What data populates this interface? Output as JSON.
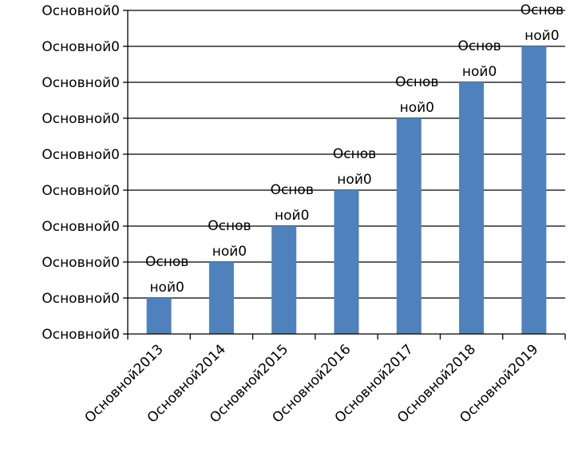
{
  "chart_data": {
    "type": "bar",
    "categories": [
      "Основной2013",
      "Основной2014",
      "Основной2015",
      "Основной2016",
      "Основной2017",
      "Основной2018",
      "Основной2019"
    ],
    "values": [
      1,
      2,
      3,
      4,
      6,
      7,
      8
    ],
    "ylim": [
      0,
      9
    ],
    "y_tick_labels": [
      "Основной0",
      "Основной0",
      "Основной0",
      "Основной0",
      "Основной0",
      "Основной0",
      "Основной0",
      "Основной0",
      "Основной0",
      "Основной0"
    ],
    "data_labels": [
      [
        "Основ",
        "ной0"
      ],
      [
        "Основ",
        "ной0"
      ],
      [
        "Основ",
        "ной0"
      ],
      [
        "Основ",
        "ной0"
      ],
      [
        "Основ",
        "ной0"
      ],
      [
        "Основ",
        "ной0"
      ],
      [
        "Основ",
        "ной0"
      ]
    ],
    "title": "",
    "xlabel": "",
    "ylabel": "",
    "grid": true,
    "legend": "none",
    "bar_color": "#4F81BD",
    "gridline_color": "#000000"
  }
}
